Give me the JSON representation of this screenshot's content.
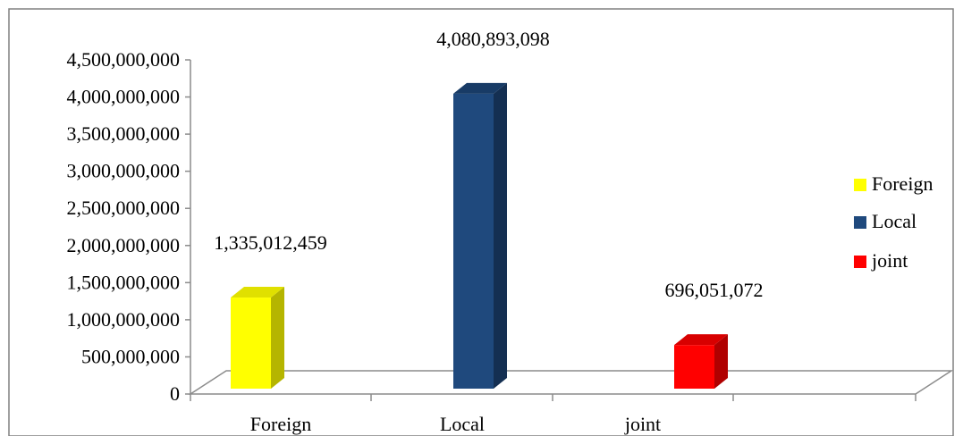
{
  "chart_data": {
    "type": "bar",
    "title": "",
    "xlabel": "",
    "ylabel": "",
    "categories": [
      "Foreign",
      "Local",
      "joint"
    ],
    "series": [
      {
        "name": "Foreign",
        "category": "Foreign",
        "value": 1335012459,
        "label": "1,335,012,459",
        "color": "#ffff00",
        "side_color": "#b5b500",
        "top_color": "#e0e000"
      },
      {
        "name": "Local",
        "category": "Local",
        "value": 4080893098,
        "label": "4,080,893,098",
        "color": "#1f497d",
        "side_color": "#142f52",
        "top_color": "#183b66"
      },
      {
        "name": "joint",
        "category": "joint",
        "value": 696051072,
        "label": "696,051,072",
        "color": "#ff0000",
        "side_color": "#b00000",
        "top_color": "#d80000"
      }
    ],
    "ylim": [
      0,
      4500000000
    ],
    "yticks": [
      0,
      500000000,
      1000000000,
      1500000000,
      2000000000,
      2500000000,
      3000000000,
      3500000000,
      4000000000,
      4500000000
    ],
    "ytick_labels": [
      "0",
      "500,000,000",
      "1,000,000,000",
      "1,500,000,000",
      "2,000,000,000",
      "2,500,000,000",
      "3,000,000,000",
      "3,500,000,000",
      "4,000,000,000",
      "4,500,000,000"
    ],
    "grid": false,
    "legend": {
      "position": "right",
      "entries": [
        "Foreign",
        "Local",
        "joint"
      ]
    },
    "three_d": true
  }
}
